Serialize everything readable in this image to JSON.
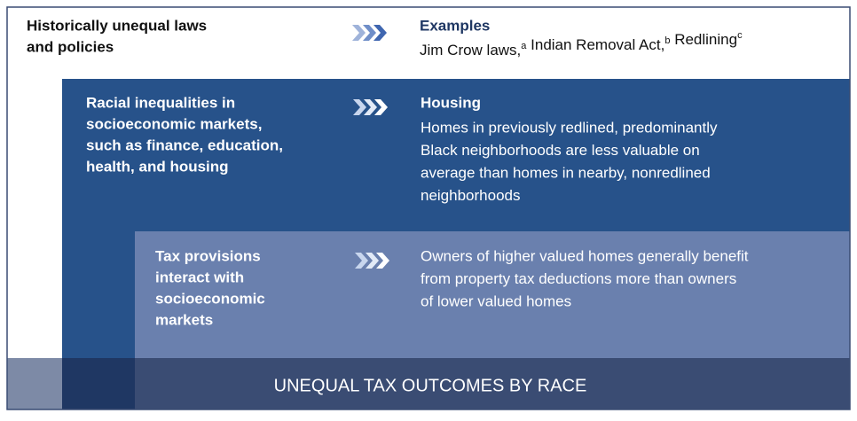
{
  "layers": [
    {
      "title_lines": [
        "Historically unequal laws",
        "and policies"
      ],
      "heading": "Examples",
      "examples": [
        {
          "text": "Jim Crow laws,",
          "note": "a"
        },
        {
          "text": " Indian Removal Act,",
          "note": "b"
        },
        {
          "text": " Redlining",
          "note": "c"
        }
      ]
    },
    {
      "title_lines": [
        "Racial inequalities in",
        "socioeconomic markets,",
        "such as finance, education,",
        "health, and housing"
      ],
      "heading": "Housing",
      "body_lines": [
        "Homes in previously redlined, predominantly",
        "Black neighborhoods are less valuable on",
        "average than homes in nearby, nonredlined",
        "neighborhoods"
      ]
    },
    {
      "title_lines": [
        "Tax provisions",
        "interact with",
        "socioeconomic",
        "markets"
      ],
      "body_lines": [
        "Owners of higher valued homes generally benefit",
        "from property tax deductions more than owners",
        "of lower valued homes"
      ]
    }
  ],
  "outcome": "UNEQUAL TAX OUTCOMES BY RACE"
}
